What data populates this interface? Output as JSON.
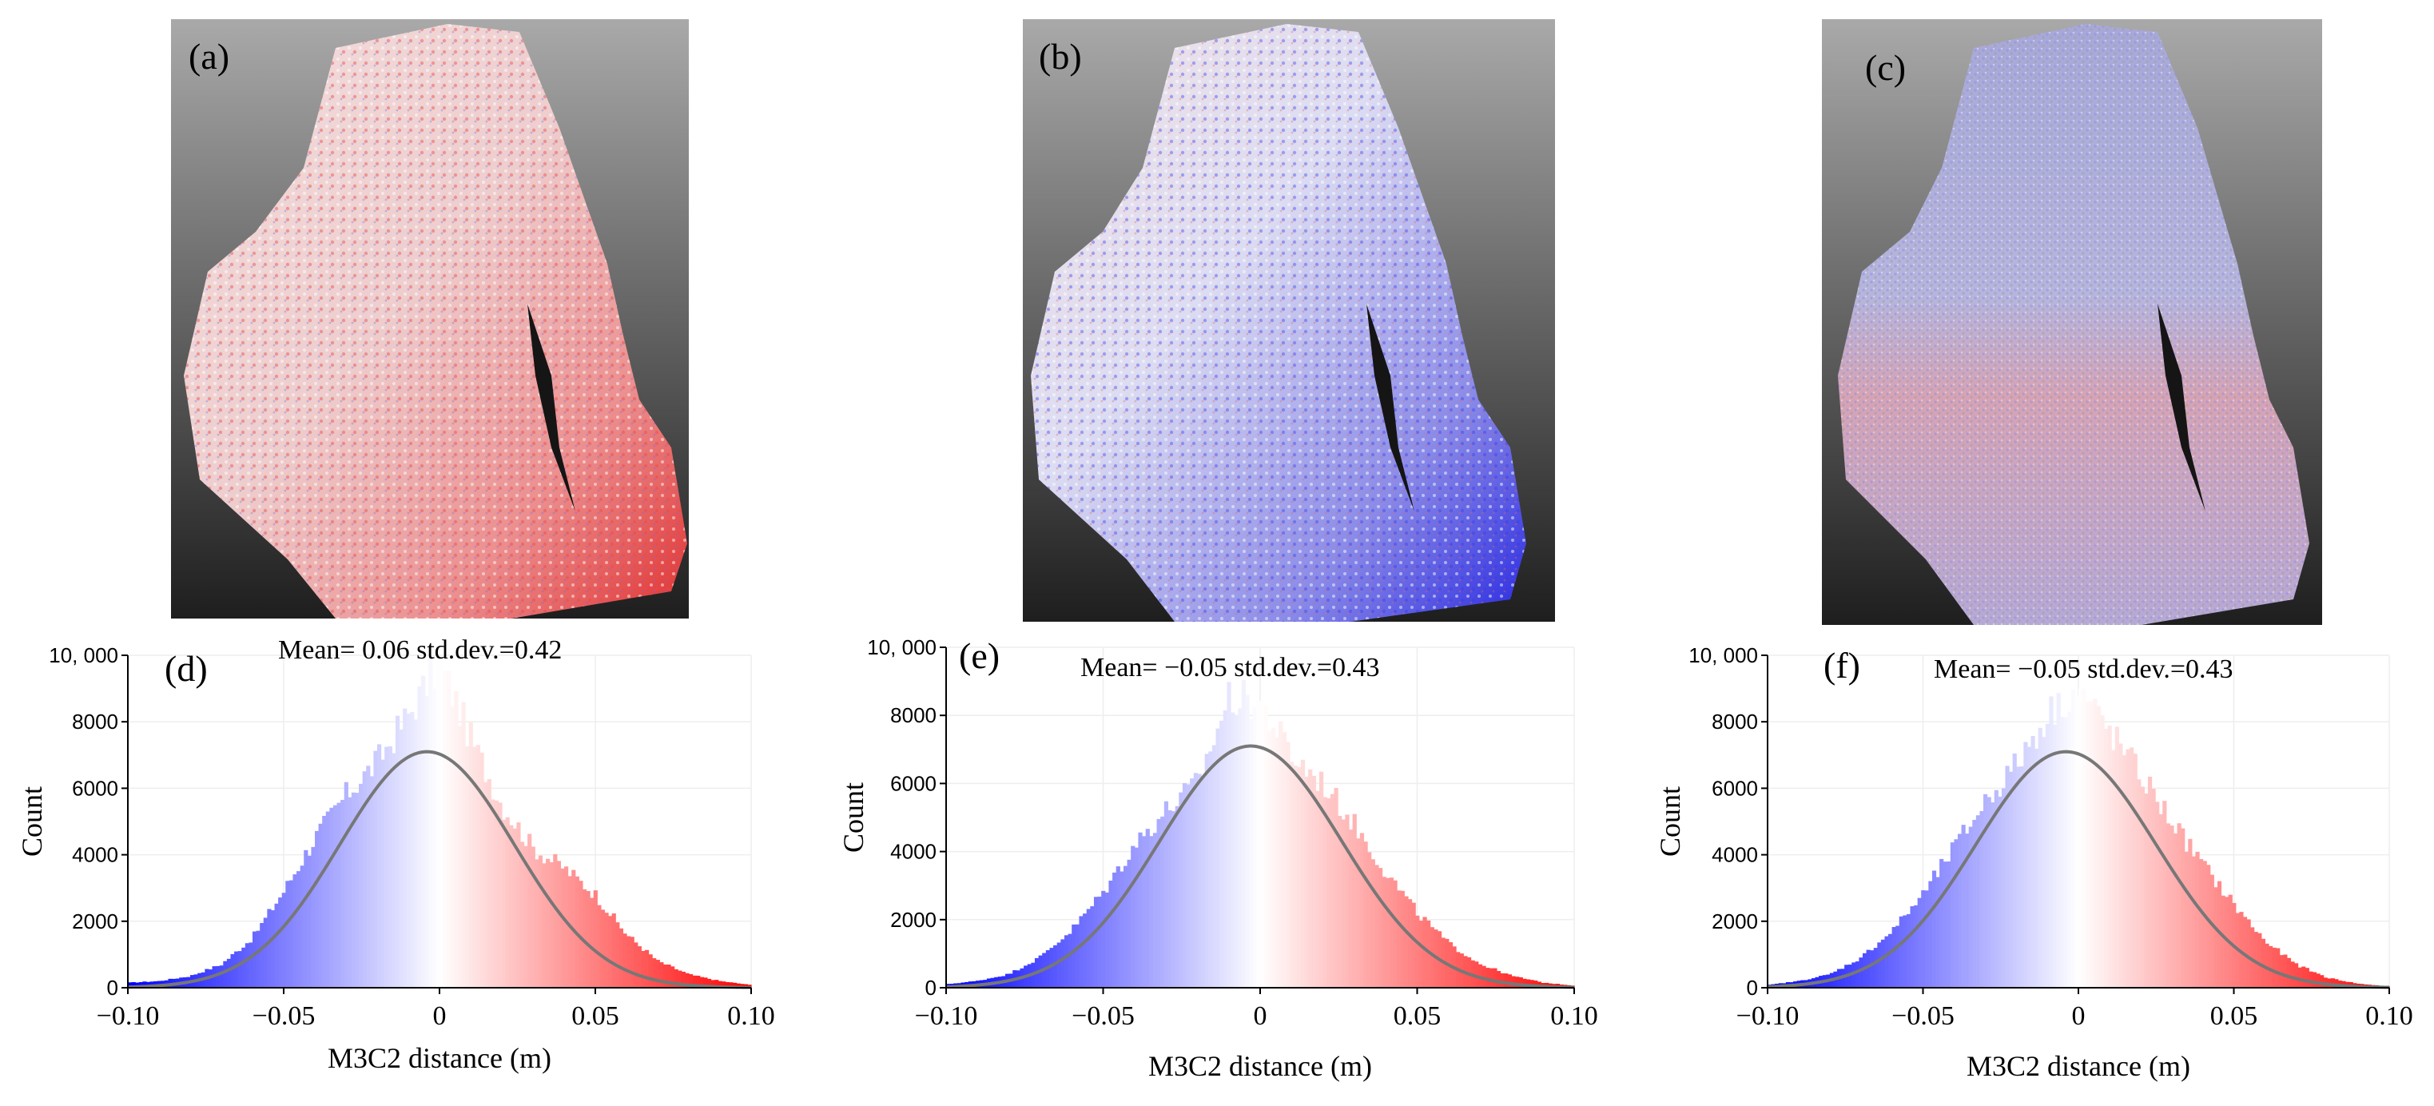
{
  "figure": {
    "panels": [
      {
        "label": "(a)",
        "dominant": "red"
      },
      {
        "label": "(b)",
        "dominant": "blue"
      },
      {
        "label": "(c)",
        "dominant": "mixed"
      }
    ],
    "colormap": {
      "negative": "#0000ff",
      "zero": "#ffffff",
      "positive": "#ff0000",
      "fit_line": "#777777",
      "grid": "#eeeeee"
    }
  },
  "chart_data": [
    {
      "type": "histogram",
      "label": "(d)",
      "title": "Mean= 0.06 std.dev.=0.42",
      "xlabel": "M3C2 distance (m)",
      "ylabel": "Count",
      "xlim": [
        -0.1,
        0.1
      ],
      "ylim": [
        0,
        10000
      ],
      "x_ticks": [
        -0.1,
        -0.05,
        0,
        0.05,
        0.1
      ],
      "x_tick_labels": [
        "−0.10",
        "−0.05",
        "0",
        "0.05",
        "0.10"
      ],
      "y_ticks": [
        0,
        2000,
        4000,
        6000,
        8000,
        10000
      ],
      "y_tick_labels": [
        "0",
        "2000",
        "4000",
        "6000",
        "8000",
        "10, 000"
      ],
      "fit": {
        "mu": -0.004,
        "peak": 7100,
        "sigma": 0.028
      },
      "hist_profile": {
        "x": [
          -0.1,
          -0.09,
          -0.08,
          -0.07,
          -0.06,
          -0.05,
          -0.04,
          -0.03,
          -0.02,
          -0.01,
          0.0,
          0.01,
          0.02,
          0.03,
          0.04,
          0.05,
          0.06,
          0.07,
          0.08,
          0.09,
          0.1
        ],
        "y": [
          150,
          200,
          350,
          700,
          1500,
          2900,
          4500,
          5800,
          6800,
          8200,
          9800,
          7500,
          5500,
          4200,
          3600,
          2800,
          1600,
          800,
          400,
          200,
          80
        ]
      }
    },
    {
      "type": "histogram",
      "label": "(e)",
      "title": "Mean= −0.05 std.dev.=0.43",
      "xlabel": "M3C2 distance (m)",
      "ylabel": "Count",
      "xlim": [
        -0.1,
        0.1
      ],
      "ylim": [
        0,
        10000
      ],
      "x_ticks": [
        -0.1,
        -0.05,
        0,
        0.05,
        0.1
      ],
      "x_tick_labels": [
        "−0.10",
        "−0.05",
        "0",
        "0.05",
        "0.10"
      ],
      "y_ticks": [
        0,
        2000,
        4000,
        6000,
        8000,
        10000
      ],
      "y_tick_labels": [
        "0",
        "2000",
        "4000",
        "6000",
        "8000",
        "10, 000"
      ],
      "fit": {
        "mu": -0.003,
        "peak": 7100,
        "sigma": 0.029
      },
      "hist_profile": {
        "x": [
          -0.1,
          -0.09,
          -0.08,
          -0.07,
          -0.06,
          -0.05,
          -0.04,
          -0.03,
          -0.02,
          -0.01,
          0.0,
          0.01,
          0.02,
          0.03,
          0.04,
          0.05,
          0.06,
          0.07,
          0.08,
          0.09,
          0.1
        ],
        "y": [
          100,
          200,
          400,
          900,
          1700,
          2800,
          4200,
          5200,
          6000,
          8500,
          8400,
          6800,
          6000,
          4800,
          3400,
          2200,
          1300,
          700,
          350,
          150,
          60
        ]
      }
    },
    {
      "type": "histogram",
      "label": "(f)",
      "title": "Mean= −0.05 std.dev.=0.43",
      "xlabel": "M3C2 distance (m)",
      "ylabel": "Count",
      "xlim": [
        -0.1,
        0.1
      ],
      "ylim": [
        0,
        10000
      ],
      "x_ticks": [
        -0.1,
        -0.05,
        0,
        0.05,
        0.1
      ],
      "x_tick_labels": [
        "−0.10",
        "−0.05",
        "0",
        "0.05",
        "0.10"
      ],
      "y_ticks": [
        0,
        2000,
        4000,
        6000,
        8000,
        10000
      ],
      "y_tick_labels": [
        "0",
        "2000",
        "4000",
        "6000",
        "8000",
        "10, 000"
      ],
      "fit": {
        "mu": -0.004,
        "peak": 7100,
        "sigma": 0.029
      },
      "hist_profile": {
        "x": [
          -0.1,
          -0.09,
          -0.08,
          -0.07,
          -0.06,
          -0.05,
          -0.04,
          -0.03,
          -0.02,
          -0.01,
          0.0,
          0.01,
          0.02,
          0.03,
          0.04,
          0.05,
          0.06,
          0.07,
          0.08,
          0.09,
          0.1
        ],
        "y": [
          80,
          200,
          400,
          900,
          1700,
          2800,
          4200,
          5600,
          6700,
          8200,
          9000,
          7700,
          6400,
          5000,
          3700,
          2500,
          1400,
          700,
          300,
          120,
          40
        ]
      }
    }
  ]
}
